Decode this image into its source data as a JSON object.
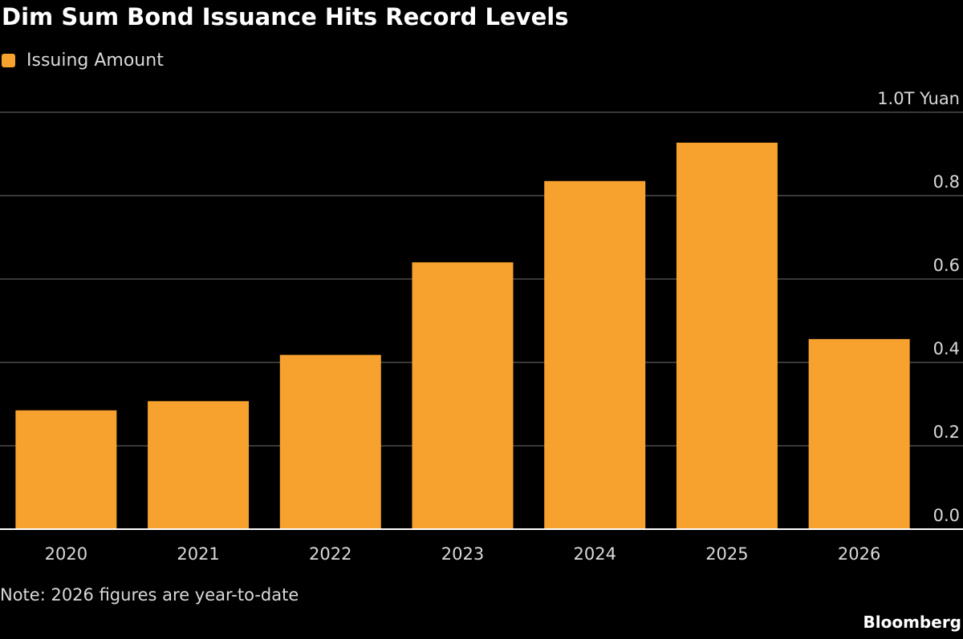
{
  "chart_data": {
    "type": "bar",
    "title": "Dim Sum Bond Issuance Hits Record Levels",
    "legend": [
      {
        "label": "Issuing Amount",
        "color": "#f7a22f"
      }
    ],
    "legend_placement": "top-left",
    "categories": [
      "2020",
      "2021",
      "2022",
      "2023",
      "2024",
      "2025",
      "2026"
    ],
    "series": [
      {
        "name": "Issuing Amount",
        "color": "#f7a22f",
        "values": [
          0.285,
          0.307,
          0.418,
          0.64,
          0.835,
          0.927,
          0.456
        ]
      }
    ],
    "ylim": [
      0,
      1.0
    ],
    "yticks": [
      {
        "value": 0.0,
        "label": "0.0"
      },
      {
        "value": 0.2,
        "label": "0.2"
      },
      {
        "value": 0.4,
        "label": "0.4"
      },
      {
        "value": 0.6,
        "label": "0.6"
      },
      {
        "value": 0.8,
        "label": "0.8"
      },
      {
        "value": 1.0,
        "label": "1.0T Yuan"
      }
    ],
    "y_axis_side": "right",
    "grid": true,
    "note": "Note: 2026 figures are year-to-date",
    "source": "Bloomberg"
  },
  "colors": {
    "background": "#000000",
    "bar": "#f7a22f",
    "grid": "#4a4a4a",
    "axis": "#ffffff",
    "text": "#d9d9d9"
  }
}
